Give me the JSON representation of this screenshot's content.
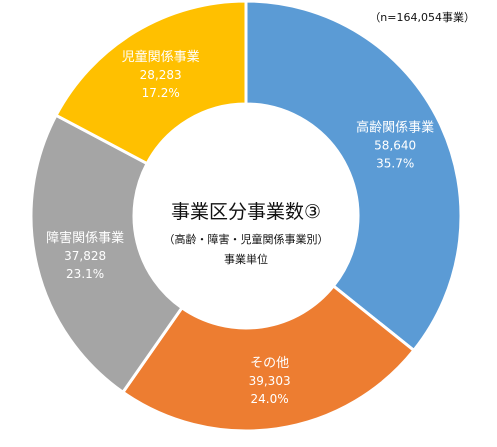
{
  "chart_data": {
    "type": "pie",
    "style": "donut",
    "note": "（n=164,054事業）",
    "center": {
      "title": "事業区分事業数③",
      "subtitle": "（高齢・障害・児童関係事業別）",
      "unit": "事業単位"
    },
    "series": [
      {
        "name": "高齢関係事業",
        "value": 58640,
        "value_label": "58,640",
        "percent_label": "35.7%",
        "color": "#5B9BD5"
      },
      {
        "name": "その他",
        "value": 39303,
        "value_label": "39,303",
        "percent_label": "24.0%",
        "color": "#ED7D31"
      },
      {
        "name": "障害関係事業",
        "value": 37828,
        "value_label": "37,828",
        "percent_label": "23.1%",
        "color": "#A5A5A5"
      },
      {
        "name": "児童関係事業",
        "value": 28283,
        "value_label": "28,283",
        "percent_label": "17.2%",
        "color": "#FFC000"
      }
    ]
  }
}
